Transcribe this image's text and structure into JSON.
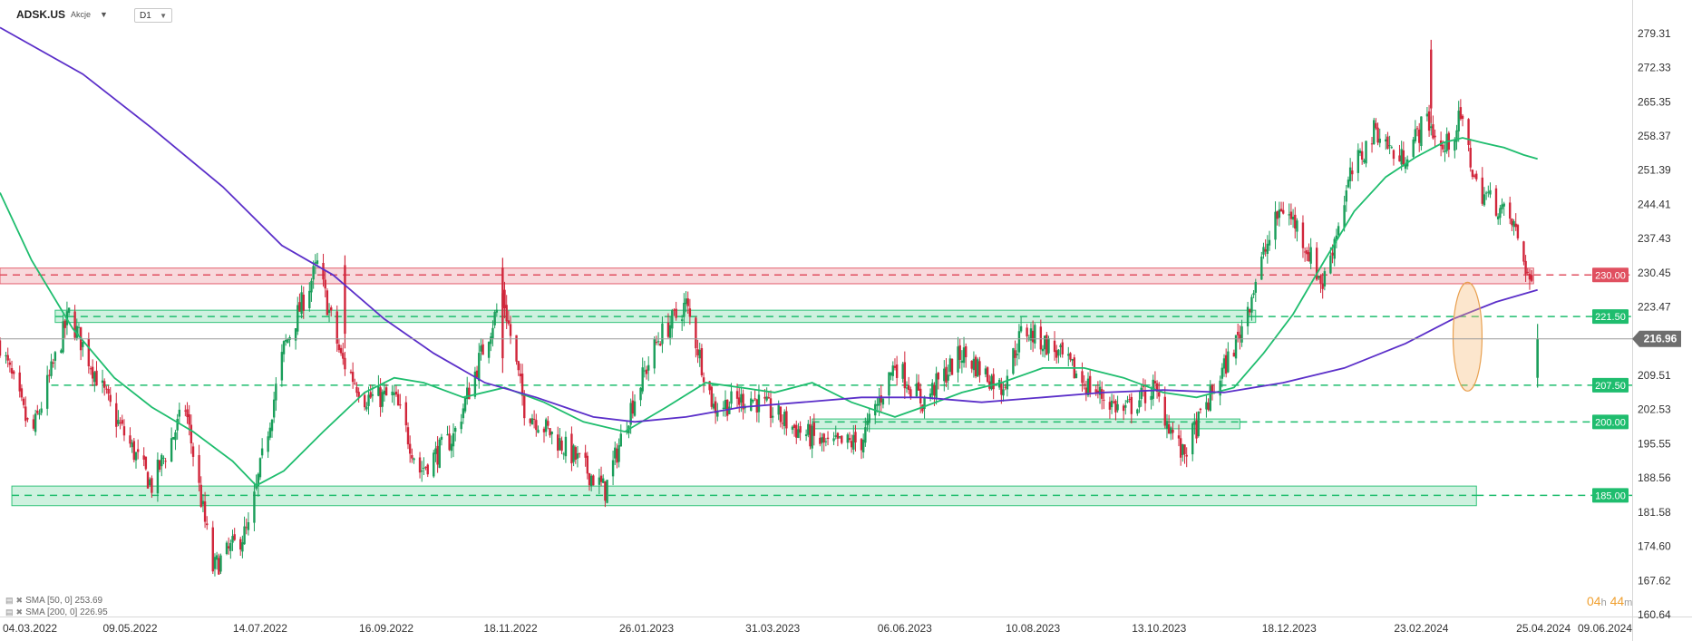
{
  "header": {
    "symbol": "ADSK.US",
    "instrument_type": "Akcje",
    "dropdown_icon": "caret-down-icon",
    "timeframe": "D1"
  },
  "legend": [
    {
      "label": "SMA [50, 0] 253.69",
      "color": "#1fbd6e"
    },
    {
      "label": "SMA [200, 0] 226.95",
      "color": "#5b2fc9"
    }
  ],
  "countdown": {
    "hours": "04",
    "h_unit": "h",
    "minutes": "44",
    "m_unit": "m"
  },
  "chart_data": {
    "type": "candlestick",
    "y_ticks": [
      279.31,
      272.33,
      265.35,
      258.37,
      251.39,
      244.41,
      237.43,
      230.45,
      223.47,
      216.49,
      209.51,
      202.53,
      195.55,
      188.56,
      181.58,
      174.6,
      167.62,
      160.64
    ],
    "y_range": [
      160.64,
      281.5
    ],
    "x_ticks": [
      "04.03.2022",
      "09.05.2022",
      "14.07.2022",
      "16.09.2022",
      "18.11.2022",
      "26.01.2023",
      "31.03.2023",
      "06.06.2023",
      "10.08.2023",
      "13.10.2023",
      "18.12.2023",
      "23.02.2024",
      "25.04.2024",
      "09.06.2024"
    ],
    "x_range": [
      "2022-03-04",
      "2024-06-09"
    ],
    "last_price": 216.96,
    "last_price_color": "#6e6e6e",
    "bull_color": "#1a9e5a",
    "bear_color": "#d1263b",
    "levels": [
      {
        "value": 230.0,
        "label": "230.00",
        "color": "#e05060",
        "style": "resistance",
        "zone": [
          228.2,
          231.4
        ],
        "zone_to": "2024-04-20"
      },
      {
        "value": 221.5,
        "label": "221.50",
        "color": "#1fbd6e",
        "style": "support",
        "zone": [
          220.3,
          222.8
        ],
        "zone_from": "2022-04-01",
        "zone_to": "2023-12-01"
      },
      {
        "value": 207.5,
        "label": "207.50",
        "color": "#1fbd6e",
        "style": "support"
      },
      {
        "value": 200.0,
        "label": "200.00",
        "color": "#1fbd6e",
        "style": "support",
        "zone": [
          198.6,
          200.6
        ],
        "zone_from": "2023-04-20",
        "zone_to": "2023-11-23"
      },
      {
        "value": 185.0,
        "label": "185.00",
        "color": "#1fbd6e",
        "style": "support",
        "zone": [
          182.9,
          186.9
        ],
        "zone_from": "2022-03-10",
        "zone_to": "2024-03-22"
      }
    ],
    "highlight": {
      "from": "2024-03-12",
      "to": "2024-03-23",
      "y": [
        206.3,
        228.5
      ],
      "color": "#f5b870"
    },
    "price_path": [
      [
        "2022-03-04",
        216
      ],
      [
        "2022-03-20",
        197
      ],
      [
        "2022-04-08",
        222
      ],
      [
        "2022-04-30",
        202
      ],
      [
        "2022-05-20",
        187
      ],
      [
        "2022-06-06",
        203
      ],
      [
        "2022-06-20",
        170
      ],
      [
        "2022-07-08",
        178
      ],
      [
        "2022-07-26",
        215
      ],
      [
        "2022-08-12",
        232
      ],
      [
        "2022-08-24",
        213
      ],
      [
        "2022-09-05",
        205
      ],
      [
        "2022-09-20",
        205
      ],
      [
        "2022-10-03",
        190
      ],
      [
        "2022-10-20",
        197
      ],
      [
        "2022-11-05",
        216
      ],
      [
        "2022-11-14",
        226
      ],
      [
        "2022-11-25",
        203
      ],
      [
        "2022-12-20",
        193
      ],
      [
        "2023-01-05",
        186
      ],
      [
        "2023-01-18",
        203
      ],
      [
        "2023-02-01",
        217
      ],
      [
        "2023-02-15",
        224
      ],
      [
        "2023-03-01",
        203
      ],
      [
        "2023-03-20",
        205
      ],
      [
        "2023-04-10",
        199
      ],
      [
        "2023-04-28",
        195
      ],
      [
        "2023-05-15",
        196
      ],
      [
        "2023-06-01",
        212
      ],
      [
        "2023-06-15",
        204
      ],
      [
        "2023-07-05",
        214
      ],
      [
        "2023-07-25",
        207
      ],
      [
        "2023-08-05",
        219
      ],
      [
        "2023-08-20",
        215
      ],
      [
        "2023-09-05",
        208
      ],
      [
        "2023-09-25",
        202
      ],
      [
        "2023-10-10",
        207
      ],
      [
        "2023-10-25",
        193
      ],
      [
        "2023-11-08",
        205
      ],
      [
        "2023-11-22",
        217
      ],
      [
        "2023-12-05",
        234
      ],
      [
        "2023-12-14",
        244
      ],
      [
        "2023-12-22",
        240
      ],
      [
        "2024-01-04",
        228
      ],
      [
        "2024-01-18",
        250
      ],
      [
        "2024-01-31",
        260
      ],
      [
        "2024-02-12",
        253
      ],
      [
        "2024-02-20",
        258
      ],
      [
        "2024-02-26",
        262
      ],
      [
        "2024-03-05",
        255
      ],
      [
        "2024-03-14",
        262
      ],
      [
        "2024-03-22",
        248
      ],
      [
        "2024-04-02",
        244
      ],
      [
        "2024-04-10",
        240
      ],
      [
        "2024-04-18",
        229
      ]
    ],
    "spikes": [
      {
        "date": "2024-02-28",
        "high": 278.0,
        "low": 261.0
      },
      {
        "date": "2022-11-14",
        "high": 233.5,
        "low": 210.0
      },
      {
        "date": "2022-08-26",
        "high": 234.0,
        "low": 215.0
      }
    ],
    "last_bars": [
      {
        "date": "2024-04-19",
        "open": 230.0,
        "high": 231.0,
        "low": 228.5,
        "close": 228.8
      },
      {
        "date": "2024-04-22",
        "open": 209.0,
        "high": 220.0,
        "low": 207.0,
        "close": 217.0
      }
    ],
    "series": [
      {
        "name": "SMA [50, 0]",
        "color": "#1fbd6e",
        "points": [
          [
            "2022-03-04",
            246.8
          ],
          [
            "2022-03-20",
            233
          ],
          [
            "2022-04-10",
            219
          ],
          [
            "2022-05-01",
            209
          ],
          [
            "2022-05-20",
            203
          ],
          [
            "2022-06-10",
            198
          ],
          [
            "2022-06-30",
            192
          ],
          [
            "2022-07-12",
            187
          ],
          [
            "2022-07-26",
            190
          ],
          [
            "2022-08-15",
            198
          ],
          [
            "2022-09-05",
            206
          ],
          [
            "2022-09-20",
            209
          ],
          [
            "2022-10-05",
            208
          ],
          [
            "2022-10-25",
            205
          ],
          [
            "2022-11-15",
            207
          ],
          [
            "2022-12-05",
            204
          ],
          [
            "2022-12-25",
            200
          ],
          [
            "2023-01-15",
            198
          ],
          [
            "2023-02-05",
            203
          ],
          [
            "2023-02-25",
            208
          ],
          [
            "2023-03-15",
            207
          ],
          [
            "2023-04-01",
            206
          ],
          [
            "2023-04-20",
            208
          ],
          [
            "2023-05-10",
            204
          ],
          [
            "2023-06-01",
            201
          ],
          [
            "2023-06-15",
            203
          ],
          [
            "2023-07-05",
            206
          ],
          [
            "2023-07-25",
            208
          ],
          [
            "2023-08-15",
            211
          ],
          [
            "2023-09-05",
            211
          ],
          [
            "2023-09-25",
            209
          ],
          [
            "2023-10-15",
            206
          ],
          [
            "2023-11-01",
            205
          ],
          [
            "2023-11-20",
            207
          ],
          [
            "2023-12-05",
            214
          ],
          [
            "2023-12-20",
            222
          ],
          [
            "2024-01-05",
            233
          ],
          [
            "2024-01-20",
            243
          ],
          [
            "2024-02-05",
            250
          ],
          [
            "2024-02-20",
            254
          ],
          [
            "2024-03-05",
            257
          ],
          [
            "2024-03-15",
            258
          ],
          [
            "2024-03-25",
            257
          ],
          [
            "2024-04-05",
            256
          ],
          [
            "2024-04-15",
            254.5
          ],
          [
            "2024-04-22",
            253.69
          ]
        ]
      },
      {
        "name": "SMA [200, 0]",
        "color": "#5b2fc9",
        "points": [
          [
            "2022-03-04",
            280.5
          ],
          [
            "2022-04-15",
            271
          ],
          [
            "2022-05-20",
            260
          ],
          [
            "2022-06-25",
            248
          ],
          [
            "2022-07-25",
            236
          ],
          [
            "2022-08-20",
            230
          ],
          [
            "2022-09-15",
            221
          ],
          [
            "2022-10-10",
            214
          ],
          [
            "2022-11-05",
            208
          ],
          [
            "2022-12-01",
            205
          ],
          [
            "2022-12-30",
            201
          ],
          [
            "2023-01-20",
            200
          ],
          [
            "2023-02-15",
            201
          ],
          [
            "2023-03-15",
            203
          ],
          [
            "2023-04-15",
            204
          ],
          [
            "2023-05-15",
            205
          ],
          [
            "2023-06-15",
            205
          ],
          [
            "2023-07-15",
            204
          ],
          [
            "2023-08-15",
            205
          ],
          [
            "2023-09-15",
            206
          ],
          [
            "2023-10-15",
            206.5
          ],
          [
            "2023-11-15",
            206
          ],
          [
            "2023-12-15",
            208
          ],
          [
            "2024-01-15",
            211
          ],
          [
            "2024-02-15",
            216
          ],
          [
            "2024-03-10",
            221
          ],
          [
            "2024-04-01",
            224.5
          ],
          [
            "2024-04-22",
            226.95
          ]
        ]
      }
    ]
  }
}
